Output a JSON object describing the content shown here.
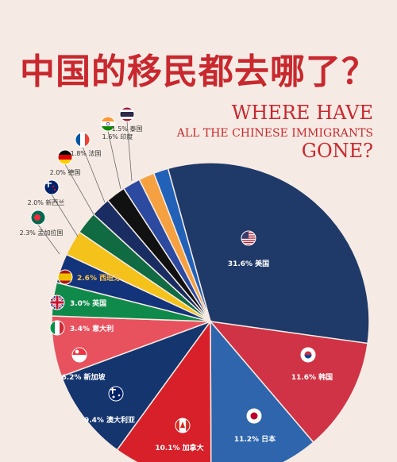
{
  "header": {
    "title_cn": "中国的移民都去哪了？",
    "subtitle_line1": "WHERE HAVE",
    "subtitle_line2": "ALL THE CHINESE IMMIGRANTS",
    "subtitle_line3": "GONE?"
  },
  "chart_data": {
    "type": "pie",
    "title": "中国的移民都去哪了？",
    "slices": [
      {
        "label": "31.6% 美国",
        "value": 31.6,
        "color": "#1f3a68",
        "icon": "usa-flag-icon"
      },
      {
        "label": "11.6% 韩国",
        "value": 11.6,
        "color": "#cf3345",
        "icon": "south-korea-flag-icon"
      },
      {
        "label": "11.2% 日本",
        "value": 11.2,
        "color": "#2e65ac",
        "icon": "japan-flag-icon"
      },
      {
        "label": "10.1% 加拿大",
        "value": 10.1,
        "color": "#d7202a",
        "icon": "canada-flag-icon"
      },
      {
        "label": "9.4% 澳大利亚",
        "value": 9.4,
        "color": "#15356f",
        "icon": "australia-flag-icon"
      },
      {
        "label": "6.2% 新加坡",
        "value": 6.2,
        "color": "#e8525f",
        "icon": "singapore-flag-icon"
      },
      {
        "label": "3.4% 意大利",
        "value": 3.4,
        "color": "#0f8a4b",
        "icon": "italy-flag-icon"
      },
      {
        "label": "3.0% 英国",
        "value": 3.0,
        "color": "#13337a",
        "icon": "uk-flag-icon"
      },
      {
        "label": "2.6% 西班牙",
        "value": 2.6,
        "color": "#f4c21b",
        "icon": "spain-flag-icon"
      },
      {
        "label": "2.3% 孟加拉国",
        "value": 2.3,
        "color": "#106b43",
        "icon": "bangladesh-flag-icon"
      },
      {
        "label": "2.0% 新西兰",
        "value": 2.0,
        "color": "#1a2d63",
        "icon": "new-zealand-flag-icon"
      },
      {
        "label": "2.0% 德国",
        "value": 2.0,
        "color": "#111111",
        "icon": "germany-flag-icon"
      },
      {
        "label": "1.8% 法国",
        "value": 1.8,
        "color": "#2b4aa0",
        "icon": "france-flag-icon"
      },
      {
        "label": "1.6% 印度",
        "value": 1.6,
        "color": "#f5a142",
        "icon": "india-flag-icon"
      },
      {
        "label": "1.5% 泰国",
        "value": 1.5,
        "color": "#2161b8",
        "icon": "thailand-flag-icon"
      }
    ]
  }
}
